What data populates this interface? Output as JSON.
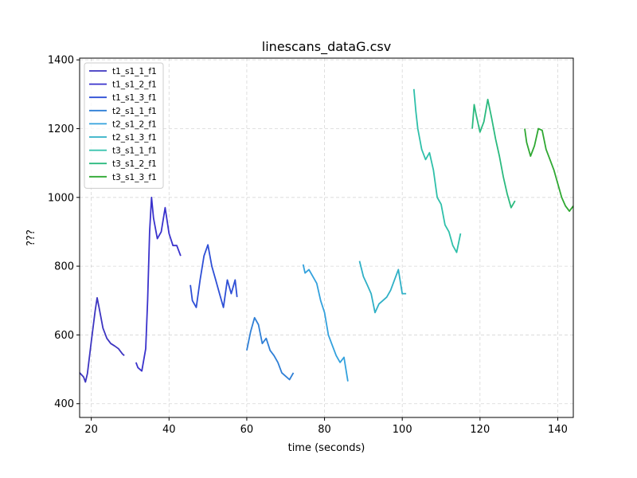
{
  "chart_data": {
    "type": "line",
    "title": "linescans_dataG.csv",
    "xlabel": "time (seconds)",
    "ylabel": "???",
    "xlim": [
      17,
      144
    ],
    "ylim": [
      360,
      1405
    ],
    "xticks": [
      20,
      40,
      60,
      80,
      100,
      120,
      140
    ],
    "yticks": [
      400,
      600,
      800,
      1000,
      1200,
      1400
    ],
    "grid": true,
    "legend_position": "top-left",
    "series": [
      {
        "name": "t1_s1_1_f1",
        "color": "#3d35c1",
        "x": [
          17,
          18,
          18.5,
          19,
          20,
          21,
          21.5,
          22,
          23,
          24,
          25,
          26,
          27,
          28,
          28.5
        ],
        "y": [
          490,
          478,
          463,
          488,
          580,
          670,
          708,
          680,
          620,
          590,
          575,
          568,
          560,
          545,
          540
        ]
      },
      {
        "name": "t1_s1_2_f1",
        "color": "#3a32cc",
        "x": [
          31.5,
          32,
          33,
          34,
          34.5,
          35,
          35.5,
          36,
          37,
          38,
          39,
          40,
          41,
          42,
          43
        ],
        "y": [
          520,
          505,
          495,
          560,
          700,
          900,
          1000,
          940,
          880,
          900,
          970,
          895,
          860,
          860,
          830
        ]
      },
      {
        "name": "t1_s1_3_f1",
        "color": "#2e4fd6",
        "x": [
          45.5,
          46,
          47,
          48,
          49,
          50,
          51,
          52,
          53,
          54,
          55,
          56,
          57,
          57.5
        ],
        "y": [
          745,
          700,
          680,
          760,
          830,
          862,
          800,
          760,
          720,
          680,
          760,
          720,
          760,
          710
        ]
      },
      {
        "name": "t2_s1_1_f1",
        "color": "#2f7fd6",
        "x": [
          60,
          61,
          62,
          63,
          64,
          65,
          66,
          67,
          68,
          69,
          70,
          71,
          72
        ],
        "y": [
          555,
          610,
          650,
          630,
          575,
          590,
          555,
          540,
          520,
          490,
          480,
          470,
          490
        ]
      },
      {
        "name": "t2_s1_2_f1",
        "color": "#33a1dd",
        "x": [
          74.5,
          75,
          76,
          77,
          78,
          79,
          80,
          81,
          82,
          83,
          84,
          85,
          86
        ],
        "y": [
          805,
          780,
          790,
          770,
          750,
          700,
          665,
          600,
          570,
          540,
          520,
          535,
          465
        ]
      },
      {
        "name": "t2_s1_3_f1",
        "color": "#2fb0c6",
        "x": [
          89,
          90,
          91,
          92,
          93,
          94,
          95,
          96,
          97,
          98,
          99,
          100,
          101
        ],
        "y": [
          815,
          770,
          745,
          720,
          665,
          690,
          700,
          710,
          730,
          760,
          790,
          720,
          720
        ]
      },
      {
        "name": "t3_s1_1_f1",
        "color": "#2fc0aa",
        "x": [
          103,
          103.5,
          104,
          105,
          106,
          107,
          108,
          109,
          110,
          111,
          112,
          113,
          114,
          115
        ],
        "y": [
          1315,
          1250,
          1200,
          1140,
          1110,
          1130,
          1080,
          1000,
          980,
          920,
          900,
          860,
          840,
          895
        ]
      },
      {
        "name": "t3_s1_2_f1",
        "color": "#2bba7f",
        "x": [
          118,
          118.5,
          119,
          120,
          121,
          122,
          123,
          124,
          125,
          126,
          127,
          128,
          129
        ],
        "y": [
          1200,
          1270,
          1240,
          1190,
          1220,
          1285,
          1230,
          1170,
          1120,
          1060,
          1010,
          970,
          990
        ]
      },
      {
        "name": "t3_s1_3_f1",
        "color": "#2fa832",
        "x": [
          131.5,
          132,
          133,
          134,
          135,
          136,
          137,
          138,
          139,
          140,
          141,
          142,
          143,
          144
        ],
        "y": [
          1200,
          1160,
          1120,
          1150,
          1200,
          1195,
          1140,
          1110,
          1080,
          1040,
          1000,
          975,
          960,
          975
        ]
      }
    ]
  }
}
